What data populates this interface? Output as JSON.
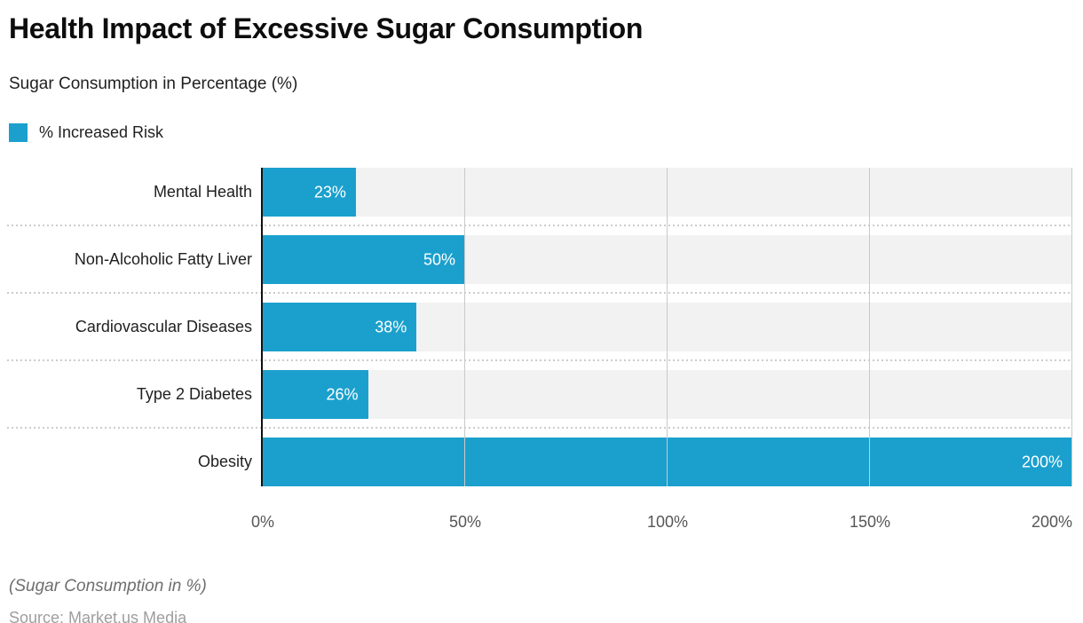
{
  "header": {
    "title": "Health Impact of Excessive Sugar Consumption",
    "subtitle": "Sugar Consumption in Percentage (%)"
  },
  "legend": {
    "label": "% Increased Risk",
    "swatch_color": "#1BA0CD"
  },
  "chart_data": {
    "type": "bar",
    "orientation": "horizontal",
    "title": "Health Impact of Excessive Sugar Consumption",
    "subtitle": "Sugar Consumption in Percentage (%)",
    "series_name": "% Increased Risk",
    "categories": [
      "Mental Health",
      "Non-Alcoholic Fatty Liver",
      "Cardiovascular Diseases",
      "Type 2 Diabetes",
      "Obesity"
    ],
    "values": [
      23,
      50,
      38,
      26,
      200
    ],
    "value_labels": [
      "23%",
      "50%",
      "38%",
      "26%",
      "200%"
    ],
    "xlim": [
      0,
      200
    ],
    "x_tick_values": [
      0,
      50,
      100,
      150,
      200
    ],
    "x_tick_labels": [
      "0%",
      "50%",
      "100%",
      "150%",
      "200%"
    ],
    "grid": true,
    "legend_position": "top-left",
    "bar_color": "#1BA0CD",
    "track_color": "#f2f2f2",
    "gridline_color": "#c9c9c9",
    "axis_color": "#111111",
    "value_label_color": "#ffffff"
  },
  "footer": {
    "note": "(Sugar Consumption in %)",
    "source": "Source: Market.us Media"
  }
}
